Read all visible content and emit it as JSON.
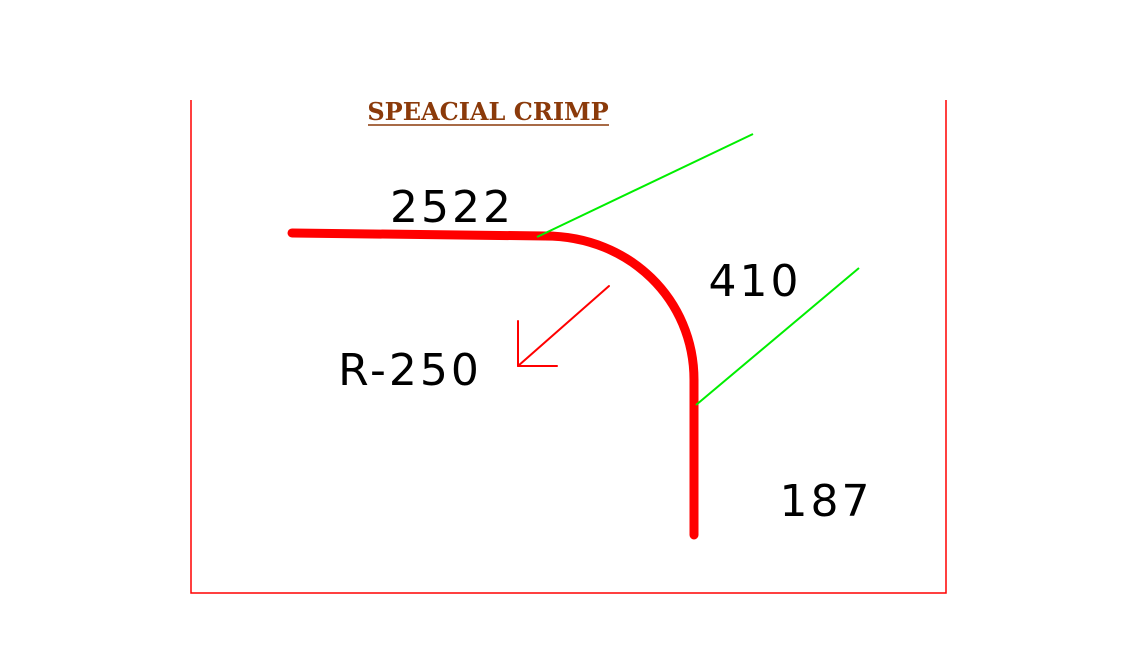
{
  "title": "SPEACIAL CRIMP",
  "dimensions": {
    "top_length": "2522",
    "arc_length": "410",
    "bottom_length": "187",
    "radius": "R-250"
  },
  "colors": {
    "profile": "#ff0000",
    "border": "#ff0000",
    "leader_lines": "#00ee00",
    "radius_arrow": "#ff0000",
    "title": "#8b3a0a",
    "text": "#000000"
  }
}
